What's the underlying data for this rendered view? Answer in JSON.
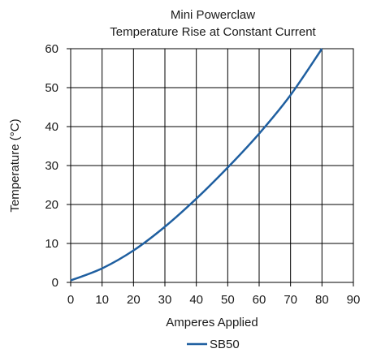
{
  "chart_data": {
    "type": "line",
    "title": "Mini Powerclaw",
    "subtitle": "Temperature Rise at Constant Current",
    "xlabel": "Amperes Applied",
    "ylabel": "Temperature (°C)",
    "xlim": [
      0,
      90
    ],
    "ylim": [
      0,
      60
    ],
    "x_ticks": [
      0,
      10,
      20,
      30,
      40,
      50,
      60,
      70,
      80,
      90
    ],
    "y_ticks": [
      0,
      10,
      20,
      30,
      40,
      50,
      60
    ],
    "grid": true,
    "legend_position": "bottom-center",
    "series": [
      {
        "name": "SB50",
        "color": "#1f5fa0",
        "x": [
          0,
          10,
          20,
          30,
          40,
          50,
          60,
          70,
          80
        ],
        "y": [
          0.5,
          3.6,
          8.2,
          14.3,
          21.5,
          29.5,
          38.2,
          48.1,
          60
        ]
      }
    ]
  }
}
